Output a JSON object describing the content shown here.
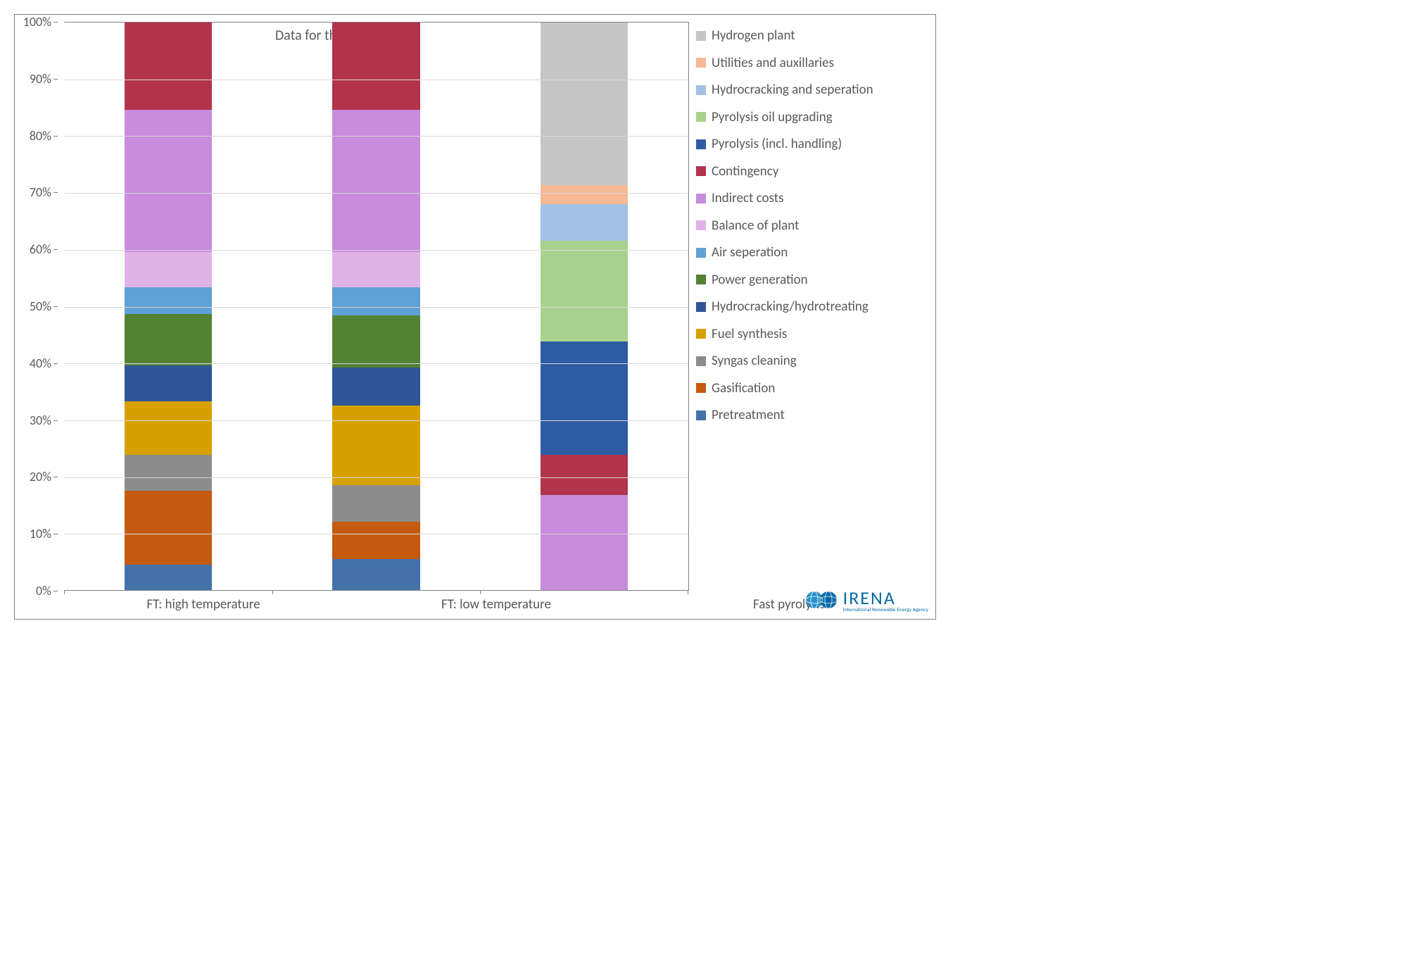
{
  "chart": {
    "type": "stacked-bar-percent",
    "annotation": "Data for the n<sup>th</sup> plant",
    "annotation_fontsize": 20,
    "ylim": [
      0,
      100
    ],
    "ytick_step": 10,
    "ytick_suffix": "%",
    "ylabel_fontsize": 18,
    "xlabel_fontsize": 19,
    "grid_color": "#d9d9d9",
    "border_color": "#808080",
    "text_color": "#595959",
    "background_color": "#ffffff",
    "bar_width_pct": 42,
    "categories": [
      "FT: high temperature",
      "FT: low temperature",
      "Fast pyrolysis"
    ],
    "legend_order": [
      "Hydrogen plant",
      "Utilities and auxillaries",
      "Hydrocracking and seperation",
      "Pyrolysis oil upgrading",
      "Pyrolysis (incl. handling)",
      "Contingency",
      "Indirect costs",
      "Balance of plant",
      "Air seperation",
      "Power generation",
      "Hydrocracking/hydrotreating",
      "Fuel synthesis",
      "Syngas cleaning",
      "Gasification",
      "Pretreatment"
    ],
    "colors": {
      "Hydrogen plant": "#c6c6c6",
      "Utilities and auxillaries": "#f6b895",
      "Hydrocracking and seperation": "#a2c1e3",
      "Pyrolysis oil upgrading": "#a9d18e",
      "Pyrolysis (incl. handling)": "#2e5ca4",
      "Contingency": "#b2334c",
      "Indirect costs": "#c78cdc",
      "Balance of plant": "#dfb3e6",
      "Air seperation": "#5fa0d5",
      "Power generation": "#548235",
      "Hydrocracking/hydrotreating": "#2f5597",
      "Fuel synthesis": "#d6a100",
      "Syngas cleaning": "#8c8c8c",
      "Gasification": "#c55a11",
      "Pretreatment": "#4472a8"
    },
    "data": {
      "FT: high temperature": {
        "Pretreatment": 4.5,
        "Gasification": 13.0,
        "Syngas cleaning": 6.3,
        "Fuel synthesis": 9.5,
        "Hydrocracking/hydrotreating": 6.3,
        "Power generation": 9.0,
        "Air seperation": 4.8,
        "Balance of plant": 6.2,
        "Indirect costs": 25.0,
        "Contingency": 15.4
      },
      "FT: low temperature": {
        "Pretreatment": 5.5,
        "Gasification": 6.5,
        "Syngas cleaning": 6.5,
        "Fuel synthesis": 14.0,
        "Hydrocracking/hydrotreating": 6.7,
        "Power generation": 9.2,
        "Air seperation": 5.0,
        "Balance of plant": 6.2,
        "Indirect costs": 25.0,
        "Contingency": 15.4
      },
      "Fast pyrolysis": {
        "Indirect costs": 16.8,
        "Contingency": 7.0,
        "Pyrolysis (incl. handling)": 20.0,
        "Pyrolysis oil upgrading": 17.8,
        "Hydrocracking and seperation": 6.4,
        "Utilities and auxillaries": 3.4,
        "Hydrogen plant": 28.6
      }
    }
  },
  "logo": {
    "main": "IRENA",
    "sub": "International Renewable Energy Agency",
    "color": "#0068a6"
  }
}
